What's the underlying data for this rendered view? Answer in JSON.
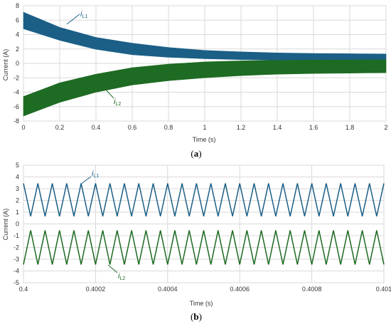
{
  "colors": {
    "series1": "#1b5f86",
    "series2": "#1e6b23",
    "grid": "#d9d9d9",
    "text": "#333333"
  },
  "chart_data": [
    {
      "type": "area",
      "caption_letter": "a",
      "xlabel": "Time (s)",
      "ylabel": "Current (A)",
      "xlim": [
        0,
        2
      ],
      "ylim": [
        -8,
        8
      ],
      "xticks": [
        0,
        0.2,
        0.4,
        0.6,
        0.8,
        1,
        1.2,
        1.4,
        1.6,
        1.8,
        2
      ],
      "yticks": [
        -8,
        -6,
        -4,
        -2,
        0,
        2,
        4,
        6,
        8
      ],
      "xtick_labels": [
        "0",
        "0.2",
        "0.4",
        "0.6",
        "0.8",
        "1",
        "1.2",
        "1.4",
        "1.6",
        "1.8",
        "2"
      ],
      "ytick_labels": [
        "-8",
        "-6",
        "-4",
        "-2",
        "0",
        "2",
        "4",
        "6",
        "8"
      ],
      "grid": true,
      "legend": "none",
      "series": [
        {
          "name": "i",
          "sub": "L1",
          "color": "#1b5f86",
          "x": [
            0,
            0.2,
            0.4,
            0.6,
            0.8,
            1.0,
            1.2,
            1.4,
            1.6,
            1.8,
            2.0
          ],
          "upper": [
            7.1,
            5.0,
            3.6,
            2.8,
            2.2,
            1.8,
            1.6,
            1.45,
            1.38,
            1.34,
            1.3
          ],
          "lower": [
            4.8,
            3.2,
            1.95,
            1.2,
            0.85,
            0.65,
            0.52,
            0.45,
            0.4,
            0.37,
            0.35
          ]
        },
        {
          "name": "i",
          "sub": "L2",
          "color": "#1e6b23",
          "x": [
            0,
            0.2,
            0.4,
            0.6,
            0.8,
            1.0,
            1.2,
            1.4,
            1.6,
            1.8,
            2.0
          ],
          "upper": [
            -4.6,
            -2.7,
            -1.5,
            -0.6,
            -0.1,
            0.2,
            0.35,
            0.42,
            0.46,
            0.48,
            0.5
          ],
          "lower": [
            -7.3,
            -5.4,
            -4.0,
            -3.0,
            -2.4,
            -2.0,
            -1.7,
            -1.5,
            -1.4,
            -1.35,
            -1.3
          ]
        }
      ]
    },
    {
      "type": "line",
      "caption_letter": "b",
      "xlabel": "Time (s)",
      "ylabel": "Current (A)",
      "xlim": [
        0.4,
        0.401
      ],
      "ylim": [
        -5,
        5
      ],
      "xticks": [
        0.4,
        0.4002,
        0.4004,
        0.4006,
        0.4008,
        0.401
      ],
      "yticks": [
        -5,
        -4,
        -3,
        -2,
        -1,
        0,
        1,
        2,
        3,
        4,
        5
      ],
      "xtick_labels": [
        "0.4",
        "0.4002",
        "0.4004",
        "0.4006",
        "0.4008",
        "0.401"
      ],
      "ytick_labels": [
        "-5",
        "-4",
        "-3",
        "-2",
        "-1",
        "0",
        "1",
        "2",
        "3",
        "4",
        "5"
      ],
      "grid": true,
      "legend": "none",
      "series": [
        {
          "name": "i",
          "sub": "L1",
          "color": "#1b5f86",
          "peak": 3.45,
          "trough": 0.65,
          "start": "peak",
          "cycles": 25
        },
        {
          "name": "i",
          "sub": "L2",
          "color": "#1e6b23",
          "peak": -0.55,
          "trough": -3.45,
          "start": "trough",
          "cycles": 25
        }
      ]
    }
  ]
}
